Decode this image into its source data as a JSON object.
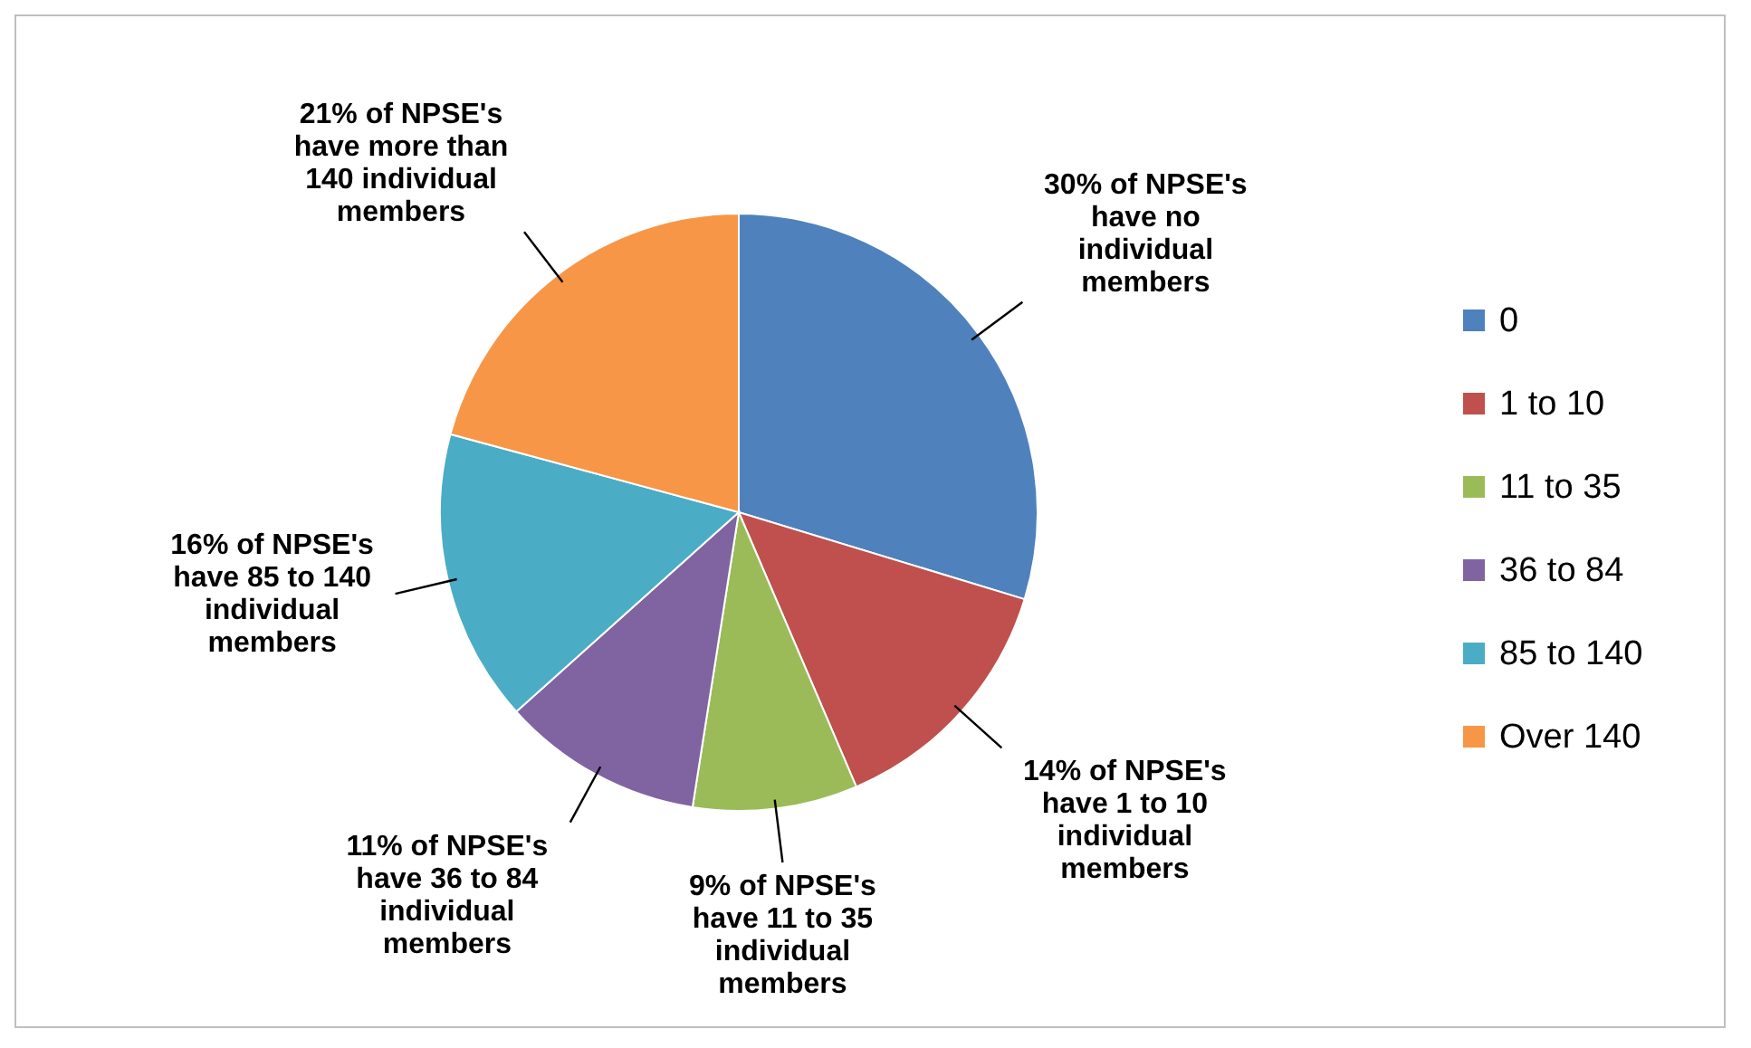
{
  "chart_data": {
    "type": "pie",
    "categories": [
      "0",
      "1 to 10",
      "11 to 35",
      "36 to 84",
      "85 to 140",
      "Over 140"
    ],
    "values": [
      30,
      14,
      9,
      11,
      16,
      21
    ],
    "colors": [
      "#4f81bd",
      "#c0504d",
      "#9bbb59",
      "#8064a2",
      "#4bacc6",
      "#f79646"
    ],
    "value_labels": [
      "30% of NPSE's have no individual members",
      "14% of NPSE's have 1 to 10 individual members",
      "9% of NPSE's have 11 to 35 individual members",
      "11% of NPSE's have 36 to 84 individual members",
      "16% of NPSE's have 85 to 140 individual members",
      "21% of NPSE's have more than 140 individual members"
    ],
    "legend": "right"
  }
}
